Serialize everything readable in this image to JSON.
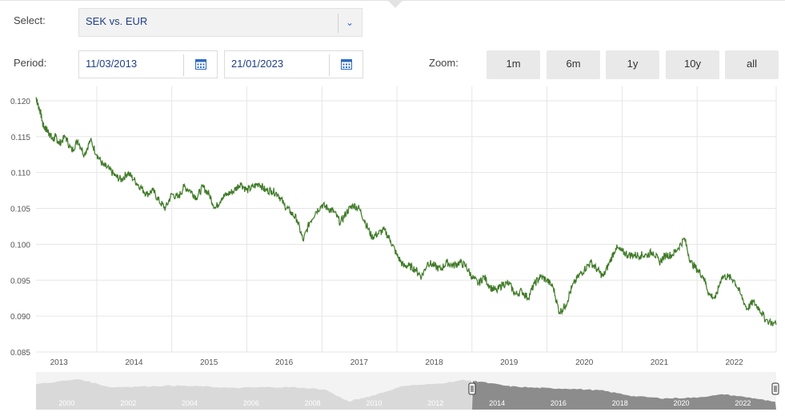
{
  "controls": {
    "select_label": "Select:",
    "select_value": "SEK vs. EUR",
    "period_label": "Period:",
    "date_from": "11/03/2013",
    "date_to": "21/01/2023",
    "zoom_label": "Zoom:",
    "zoom_buttons": [
      "1m",
      "6m",
      "1y",
      "10y",
      "all"
    ]
  },
  "colors": {
    "line": "#3f7a27",
    "accent": "#2c6ac6",
    "navigator_fill": "#d9d9d9",
    "navigator_selected": "#8c8c8c"
  },
  "chart_data": {
    "type": "line",
    "title": "",
    "xlabel": "",
    "ylabel": "",
    "x_start": "2013-03-11",
    "x_end": "2023-01-21",
    "ylim": [
      0.085,
      0.122
    ],
    "y_ticks": [
      "0.085",
      "0.090",
      "0.095",
      "0.100",
      "0.105",
      "0.110",
      "0.115",
      "0.120"
    ],
    "x_ticks": [
      "2013",
      "2014",
      "2015",
      "2016",
      "2017",
      "2018",
      "2019",
      "2020",
      "2021",
      "2022"
    ],
    "grid": true,
    "series": [
      {
        "name": "",
        "points": [
          [
            "2013-03-11",
            0.1205
          ],
          [
            "2013-03-20",
            0.1195
          ],
          [
            "2013-04-01",
            0.1185
          ],
          [
            "2013-04-15",
            0.1165
          ],
          [
            "2013-05-01",
            0.116
          ],
          [
            "2013-05-15",
            0.1155
          ],
          [
            "2013-06-01",
            0.1145
          ],
          [
            "2013-06-15",
            0.115
          ],
          [
            "2013-07-01",
            0.114
          ],
          [
            "2013-08-01",
            0.115
          ],
          [
            "2013-09-01",
            0.113
          ],
          [
            "2013-10-01",
            0.1145
          ],
          [
            "2013-11-01",
            0.1125
          ],
          [
            "2013-12-01",
            0.1145
          ],
          [
            "2014-01-01",
            0.1125
          ],
          [
            "2014-02-01",
            0.111
          ],
          [
            "2014-03-01",
            0.1105
          ],
          [
            "2014-04-01",
            0.1095
          ],
          [
            "2014-05-01",
            0.109
          ],
          [
            "2014-06-01",
            0.11
          ],
          [
            "2014-07-01",
            0.109
          ],
          [
            "2014-08-01",
            0.108
          ],
          [
            "2014-09-01",
            0.107
          ],
          [
            "2014-10-01",
            0.1075
          ],
          [
            "2014-11-01",
            0.106
          ],
          [
            "2014-12-01",
            0.105
          ],
          [
            "2015-01-01",
            0.107
          ],
          [
            "2015-02-01",
            0.1065
          ],
          [
            "2015-03-01",
            0.108
          ],
          [
            "2015-04-01",
            0.1075
          ],
          [
            "2015-05-01",
            0.1065
          ],
          [
            "2015-06-01",
            0.108
          ],
          [
            "2015-07-01",
            0.107
          ],
          [
            "2015-08-01",
            0.105
          ],
          [
            "2015-09-01",
            0.1065
          ],
          [
            "2015-10-01",
            0.107
          ],
          [
            "2015-11-01",
            0.1075
          ],
          [
            "2015-12-01",
            0.1085
          ],
          [
            "2016-01-01",
            0.1075
          ],
          [
            "2016-02-01",
            0.108
          ],
          [
            "2016-03-01",
            0.1085
          ],
          [
            "2016-04-01",
            0.1075
          ],
          [
            "2016-05-01",
            0.1075
          ],
          [
            "2016-06-01",
            0.107
          ],
          [
            "2016-07-01",
            0.1055
          ],
          [
            "2016-08-01",
            0.1045
          ],
          [
            "2016-09-01",
            0.1035
          ],
          [
            "2016-10-01",
            0.1005
          ],
          [
            "2016-11-01",
            0.103
          ],
          [
            "2016-12-01",
            0.1045
          ],
          [
            "2017-01-01",
            0.1055
          ],
          [
            "2017-02-01",
            0.105
          ],
          [
            "2017-03-01",
            0.1045
          ],
          [
            "2017-04-01",
            0.103
          ],
          [
            "2017-05-01",
            0.1045
          ],
          [
            "2017-06-01",
            0.1055
          ],
          [
            "2017-07-01",
            0.105
          ],
          [
            "2017-08-01",
            0.103
          ],
          [
            "2017-09-01",
            0.101
          ],
          [
            "2017-10-01",
            0.1015
          ],
          [
            "2017-11-01",
            0.102
          ],
          [
            "2017-12-01",
            0.1005
          ],
          [
            "2018-01-01",
            0.0985
          ],
          [
            "2018-02-01",
            0.097
          ],
          [
            "2018-03-01",
            0.097
          ],
          [
            "2018-04-01",
            0.0965
          ],
          [
            "2018-05-01",
            0.0955
          ],
          [
            "2018-06-01",
            0.0975
          ],
          [
            "2018-07-01",
            0.097
          ],
          [
            "2018-08-01",
            0.0965
          ],
          [
            "2018-09-01",
            0.0975
          ],
          [
            "2018-10-01",
            0.097
          ],
          [
            "2018-11-01",
            0.0975
          ],
          [
            "2018-12-01",
            0.097
          ],
          [
            "2019-01-01",
            0.0955
          ],
          [
            "2019-02-01",
            0.0945
          ],
          [
            "2019-03-01",
            0.0955
          ],
          [
            "2019-04-01",
            0.094
          ],
          [
            "2019-05-01",
            0.0935
          ],
          [
            "2019-06-01",
            0.0945
          ],
          [
            "2019-07-01",
            0.0945
          ],
          [
            "2019-08-01",
            0.093
          ],
          [
            "2019-09-01",
            0.0935
          ],
          [
            "2019-10-01",
            0.0925
          ],
          [
            "2019-11-01",
            0.0945
          ],
          [
            "2019-12-01",
            0.0955
          ],
          [
            "2020-01-01",
            0.095
          ],
          [
            "2020-02-01",
            0.094
          ],
          [
            "2020-03-01",
            0.0905
          ],
          [
            "2020-04-01",
            0.0915
          ],
          [
            "2020-05-01",
            0.094
          ],
          [
            "2020-06-01",
            0.0955
          ],
          [
            "2020-07-01",
            0.0965
          ],
          [
            "2020-08-01",
            0.0975
          ],
          [
            "2020-09-01",
            0.0965
          ],
          [
            "2020-10-01",
            0.0955
          ],
          [
            "2020-11-01",
            0.0975
          ],
          [
            "2020-12-01",
            0.0995
          ],
          [
            "2021-01-01",
            0.099
          ],
          [
            "2021-02-01",
            0.0985
          ],
          [
            "2021-03-01",
            0.0985
          ],
          [
            "2021-04-01",
            0.0985
          ],
          [
            "2021-05-01",
            0.0985
          ],
          [
            "2021-06-01",
            0.099
          ],
          [
            "2021-07-01",
            0.0975
          ],
          [
            "2021-08-01",
            0.0985
          ],
          [
            "2021-09-01",
            0.0985
          ],
          [
            "2021-10-01",
            0.0995
          ],
          [
            "2021-11-01",
            0.1008
          ],
          [
            "2021-12-01",
            0.0975
          ],
          [
            "2022-01-01",
            0.0965
          ],
          [
            "2022-02-01",
            0.0955
          ],
          [
            "2022-03-01",
            0.093
          ],
          [
            "2022-04-01",
            0.0925
          ],
          [
            "2022-05-01",
            0.0955
          ],
          [
            "2022-06-01",
            0.0955
          ],
          [
            "2022-07-01",
            0.095
          ],
          [
            "2022-08-01",
            0.093
          ],
          [
            "2022-09-01",
            0.091
          ],
          [
            "2022-10-01",
            0.092
          ],
          [
            "2022-11-01",
            0.091
          ],
          [
            "2022-12-01",
            0.0895
          ],
          [
            "2023-01-21",
            0.0888
          ]
        ]
      }
    ],
    "navigator": {
      "x_ticks": [
        "2000",
        "2002",
        "2004",
        "2006",
        "2008",
        "2010",
        "2012",
        "2014",
        "2016",
        "2018",
        "2020",
        "2022"
      ],
      "selected_from": "2013-03-11",
      "selected_to": "2023-01-21"
    }
  }
}
